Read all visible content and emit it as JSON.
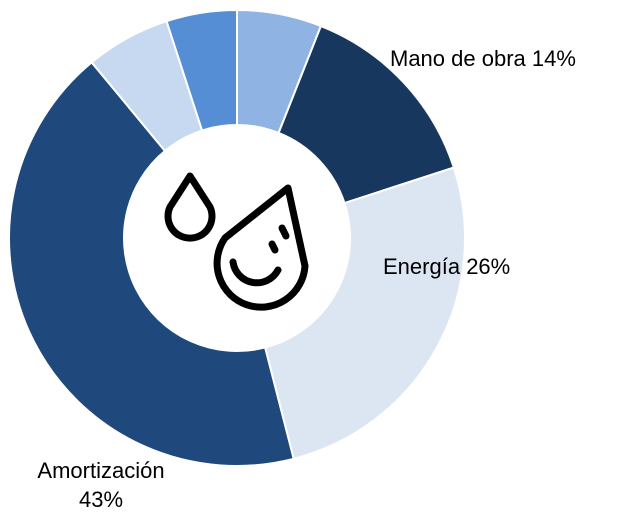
{
  "chart_data": {
    "type": "donut",
    "categories": [
      null,
      "Mano de obra",
      "Energía",
      "Amortización",
      null,
      null
    ],
    "values": [
      6,
      14,
      26,
      43,
      6,
      5
    ],
    "value_labels": [
      null,
      "14%",
      "26%",
      "43%",
      null,
      null
    ],
    "colors": [
      "#8fb4e3",
      "#17375e",
      "#dce6f2",
      "#1f497d",
      "#c6d9f0",
      "#558ed5"
    ]
  }
}
